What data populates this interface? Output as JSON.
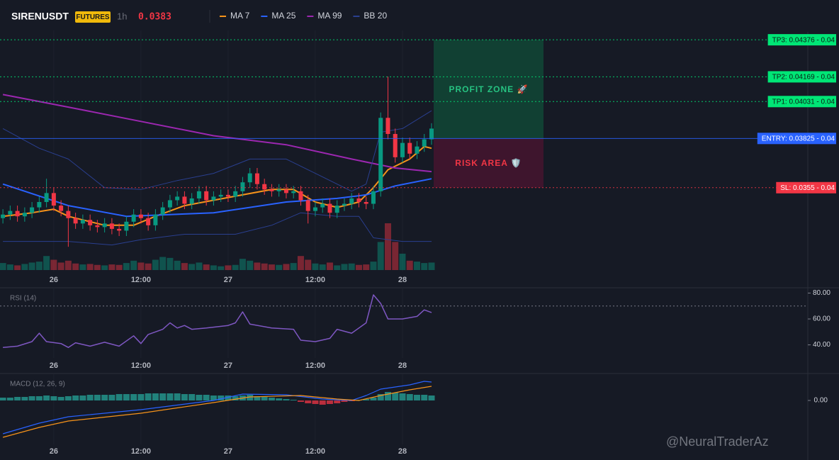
{
  "header": {
    "symbol": "SIRENUSDT",
    "badge": "FUTURES",
    "interval": "1h",
    "price": 0.0383,
    "watermark": "@NeuralTraderAz"
  },
  "chart_data": [
    {
      "type": "candlestick",
      "xlim": [
        16.6,
        127.6
      ],
      "xticks": [
        {
          "value": 24,
          "label": "26"
        },
        {
          "value": 36,
          "label": "12:00"
        },
        {
          "value": 48,
          "label": "27"
        },
        {
          "value": 60,
          "label": "12:00"
        },
        {
          "value": 72,
          "label": "28"
        }
      ],
      "ylim": [
        0.0309,
        0.0442
      ],
      "up_color": "#089981",
      "down_color": "#f23645",
      "x": [
        17,
        18,
        19,
        20,
        21,
        22,
        23,
        24,
        25,
        26,
        27,
        28,
        29,
        30,
        31,
        32,
        33,
        34,
        35,
        36,
        37,
        38,
        39,
        40,
        41,
        42,
        43,
        44,
        45,
        46,
        47,
        48,
        49,
        50,
        51,
        52,
        53,
        54,
        55,
        56,
        57,
        58,
        59,
        60,
        61,
        62,
        63,
        64,
        65,
        66,
        67,
        68,
        69,
        70,
        71,
        72,
        73,
        74,
        75,
        76
      ],
      "open": [
        0.0338,
        0.034,
        0.0342,
        0.0339,
        0.0341,
        0.0344,
        0.0347,
        0.0352,
        0.0345,
        0.0342,
        0.0338,
        0.0335,
        0.0337,
        0.0334,
        0.0333,
        0.0335,
        0.0332,
        0.0331,
        0.0336,
        0.034,
        0.0338,
        0.0334,
        0.034,
        0.0344,
        0.0348,
        0.035,
        0.0346,
        0.0349,
        0.0353,
        0.0348,
        0.035,
        0.0351,
        0.035,
        0.0353,
        0.0358,
        0.0363,
        0.0357,
        0.0354,
        0.0353,
        0.0354,
        0.0352,
        0.0353,
        0.0348,
        0.0342,
        0.0344,
        0.0346,
        0.0341,
        0.0345,
        0.0346,
        0.0349,
        0.0347,
        0.0346,
        0.0353,
        0.0394,
        0.0385,
        0.0372,
        0.038,
        0.0374,
        0.0378,
        0.0382
      ],
      "high": [
        0.0343,
        0.0345,
        0.0345,
        0.0344,
        0.0347,
        0.035,
        0.036,
        0.0355,
        0.0348,
        0.0345,
        0.0341,
        0.034,
        0.034,
        0.0337,
        0.0338,
        0.0338,
        0.0335,
        0.0339,
        0.0343,
        0.0343,
        0.0341,
        0.0343,
        0.0347,
        0.0351,
        0.0353,
        0.0353,
        0.0352,
        0.0356,
        0.0356,
        0.0353,
        0.0354,
        0.0354,
        0.0356,
        0.0361,
        0.0366,
        0.0366,
        0.036,
        0.0357,
        0.0357,
        0.0357,
        0.0356,
        0.0356,
        0.0351,
        0.0347,
        0.0349,
        0.0349,
        0.0348,
        0.0349,
        0.0352,
        0.0352,
        0.035,
        0.0356,
        0.0397,
        0.0417,
        0.0388,
        0.0383,
        0.0383,
        0.0381,
        0.0385,
        0.0391
      ],
      "low": [
        0.0335,
        0.0337,
        0.0336,
        0.0336,
        0.0338,
        0.0341,
        0.0344,
        0.0342,
        0.0339,
        0.0322,
        0.0332,
        0.0332,
        0.0331,
        0.033,
        0.033,
        0.0329,
        0.0328,
        0.0328,
        0.0333,
        0.0335,
        0.0331,
        0.0331,
        0.0337,
        0.0341,
        0.0345,
        0.0343,
        0.0343,
        0.0346,
        0.0345,
        0.0345,
        0.0347,
        0.0347,
        0.0347,
        0.035,
        0.0355,
        0.0354,
        0.0351,
        0.035,
        0.035,
        0.0349,
        0.0349,
        0.0345,
        0.0335,
        0.0339,
        0.0341,
        0.0338,
        0.0338,
        0.0342,
        0.0343,
        0.0344,
        0.0343,
        0.0343,
        0.035,
        0.0382,
        0.0369,
        0.0369,
        0.0371,
        0.0371,
        0.0375,
        0.0379
      ],
      "close": [
        0.034,
        0.0342,
        0.0339,
        0.0341,
        0.0344,
        0.0347,
        0.0352,
        0.0345,
        0.0342,
        0.0338,
        0.0335,
        0.0337,
        0.0334,
        0.0333,
        0.0335,
        0.0332,
        0.0331,
        0.0336,
        0.034,
        0.0338,
        0.0334,
        0.034,
        0.0344,
        0.0348,
        0.035,
        0.0346,
        0.0349,
        0.0353,
        0.0348,
        0.035,
        0.0351,
        0.035,
        0.0353,
        0.0358,
        0.0363,
        0.0357,
        0.0354,
        0.0353,
        0.0354,
        0.0352,
        0.0353,
        0.0348,
        0.0342,
        0.0344,
        0.0346,
        0.0341,
        0.0345,
        0.0346,
        0.0349,
        0.0347,
        0.0346,
        0.0353,
        0.0394,
        0.0385,
        0.0372,
        0.038,
        0.0374,
        0.0378,
        0.0382,
        0.0388
      ],
      "volume": [
        1.5,
        1.2,
        1.0,
        1.3,
        1.6,
        1.8,
        3.0,
        2.2,
        1.6,
        2.0,
        1.4,
        1.2,
        1.3,
        1.1,
        1.0,
        1.2,
        1.1,
        1.5,
        2.0,
        1.6,
        1.4,
        2.2,
        2.8,
        2.6,
        2.0,
        1.5,
        1.3,
        1.6,
        1.2,
        1.0,
        0.8,
        1.0,
        1.1,
        2.4,
        2.0,
        1.6,
        1.4,
        1.2,
        1.1,
        1.3,
        1.5,
        3.0,
        2.2,
        1.4,
        1.2,
        1.6,
        1.0,
        1.3,
        1.4,
        1.1,
        1.2,
        1.8,
        6.0,
        10.0,
        6.0,
        3.5,
        2.0,
        1.8,
        1.5,
        1.6
      ],
      "volume_lim": [
        0,
        10
      ],
      "overlays": [
        {
          "name": "MA 7",
          "color": "#f7931a",
          "x": [
            17,
            21,
            24,
            26,
            31,
            35,
            38,
            42,
            46,
            50,
            54,
            57,
            60,
            63,
            66,
            68,
            70,
            73,
            75,
            76
          ],
          "values": [
            0.0339,
            0.0341,
            0.0343,
            0.0339,
            0.0334,
            0.0334,
            0.0339,
            0.0345,
            0.0348,
            0.0351,
            0.0354,
            0.0354,
            0.0347,
            0.0344,
            0.0347,
            0.0355,
            0.0365,
            0.0371,
            0.0378,
            0.0377
          ]
        },
        {
          "name": "MA 25",
          "color": "#2962ff",
          "x": [
            17,
            26,
            34,
            46,
            56,
            63,
            67,
            71,
            76
          ],
          "values": [
            0.0357,
            0.0345,
            0.0339,
            0.0341,
            0.0347,
            0.0349,
            0.0351,
            0.0356,
            0.036
          ]
        },
        {
          "name": "MA 99",
          "color": "#9c27b0",
          "x": [
            17,
            26,
            36,
            46,
            56,
            65,
            71,
            76
          ],
          "values": [
            0.0407,
            0.04,
            0.0392,
            0.0384,
            0.0379,
            0.0371,
            0.0366,
            0.0364
          ]
        },
        {
          "name": "BB 20",
          "color": "#2a3f8f",
          "x": [
            17,
            22,
            26,
            31,
            36,
            41,
            46,
            51,
            56,
            61,
            65,
            67,
            69,
            72,
            76
          ],
          "values": [
            0.0388,
            0.0377,
            0.0371,
            0.0355,
            0.0354,
            0.0359,
            0.0363,
            0.0371,
            0.0371,
            0.0361,
            0.0353,
            0.0357,
            0.0386,
            0.0388,
            0.0398
          ],
          "lower": {
            "x": [
              17,
              26,
              32,
              36,
              42,
              49,
              54,
              58,
              63,
              66,
              68,
              72,
              76
            ],
            "values": [
              0.0325,
              0.0325,
              0.0323,
              0.0326,
              0.0329,
              0.0329,
              0.0334,
              0.0341,
              0.0339,
              0.0339,
              0.0327,
              0.0325,
              0.0325
            ]
          }
        }
      ],
      "levels": [
        {
          "label": "TP3: 0.04376 - 0.04",
          "value": 0.04376,
          "color": "#00e676",
          "text_color": "#0b1a12",
          "dash": true
        },
        {
          "label": "TP2: 0.04169 - 0.04",
          "value": 0.04169,
          "color": "#00e676",
          "text_color": "#0b1a12",
          "dash": true
        },
        {
          "label": "TP1: 0.04031 - 0.04",
          "value": 0.04031,
          "color": "#00e676",
          "text_color": "#0b1a12",
          "dash": true
        },
        {
          "label": "ENTRY: 0.03825 - 0.04",
          "value": 0.03825,
          "color": "#2962ff",
          "text_color": "#ffffff",
          "dash": false
        },
        {
          "label": "SL: 0.0355 - 0.04",
          "value": 0.0355,
          "color": "#f23645",
          "text_color": "#ffffff",
          "dash": true
        }
      ],
      "profit_zone_label": "PROFIT ZONE 🚀",
      "risk_zone_label": "RISK AREA 🛡️"
    },
    {
      "type": "line",
      "title": "RSI (14)",
      "color": "#7e57c2",
      "xlim": [
        16.6,
        127.6
      ],
      "xticks": [
        {
          "value": 24,
          "label": "26"
        },
        {
          "value": 36,
          "label": "12:00"
        },
        {
          "value": 48,
          "label": "27"
        },
        {
          "value": 60,
          "label": "12:00"
        },
        {
          "value": 72,
          "label": "28"
        }
      ],
      "ylim": [
        31,
        83
      ],
      "yticks": [
        {
          "value": 40,
          "label": "40.00"
        },
        {
          "value": 60,
          "label": "60.00"
        },
        {
          "value": 80,
          "label": "80.00"
        }
      ],
      "reference_line": 70,
      "x": [
        17,
        19,
        21,
        22,
        23,
        25,
        26,
        27,
        29,
        31,
        33,
        35,
        36,
        37,
        39,
        40,
        41,
        42,
        43,
        45,
        48,
        49,
        50,
        51,
        54,
        57,
        58,
        60,
        62,
        63,
        65,
        67,
        68,
        69,
        70,
        72,
        74,
        75,
        76
      ],
      "values": [
        38,
        39,
        42.5,
        49,
        42.5,
        41,
        38,
        41.6,
        39,
        42,
        39,
        47,
        41,
        48,
        52,
        57,
        53,
        55,
        52,
        53,
        55,
        57,
        65.5,
        56,
        53,
        52,
        43.6,
        42.5,
        45,
        52,
        49,
        57,
        78.6,
        72,
        60,
        60,
        62,
        67,
        65
      ]
    },
    {
      "type": "macd",
      "title": "MACD (12, 26, 9)",
      "xlim": [
        16.6,
        127.6
      ],
      "xticks": [
        {
          "value": 24,
          "label": "26"
        },
        {
          "value": 36,
          "label": "12:00"
        },
        {
          "value": 48,
          "label": "27"
        },
        {
          "value": 60,
          "label": "12:00"
        },
        {
          "value": 72,
          "label": "28"
        }
      ],
      "ylim": [
        -0.0012,
        0.0007
      ],
      "yticks": [
        {
          "value": 0,
          "label": "0.00"
        }
      ],
      "macd": {
        "color": "#2962ff",
        "x": [
          17,
          22,
          26,
          36,
          46,
          50,
          56,
          61,
          65,
          67,
          69,
          73,
          75,
          76
        ],
        "values": [
          -0.00094,
          -0.00064,
          -0.00046,
          -0.00026,
          0,
          0.00018,
          0.00016,
          4e-05,
          0,
          0.00014,
          0.00032,
          0.00044,
          0.00054,
          0.00052
        ]
      },
      "signal": {
        "color": "#f7931a",
        "x": [
          17,
          22,
          26,
          36,
          46,
          51,
          58,
          63,
          66,
          69,
          73,
          76
        ],
        "values": [
          -0.00104,
          -0.00076,
          -0.00058,
          -0.00036,
          -6e-05,
          0.0001,
          0.00014,
          4e-05,
          0,
          0.00014,
          0.0003,
          0.0004
        ]
      },
      "histogram": {
        "up_color": "#26a69a",
        "down_color": "#f23645",
        "x": [
          17,
          18,
          19,
          20,
          21,
          22,
          23,
          24,
          25,
          26,
          27,
          28,
          29,
          30,
          31,
          32,
          33,
          34,
          35,
          36,
          37,
          38,
          39,
          40,
          41,
          42,
          43,
          44,
          45,
          46,
          47,
          48,
          49,
          50,
          51,
          52,
          53,
          54,
          55,
          56,
          57,
          58,
          59,
          60,
          61,
          62,
          63,
          64,
          65,
          66,
          67,
          68,
          69,
          70,
          71,
          72,
          73,
          74,
          75,
          76
        ],
        "values": [
          8e-05,
          8e-05,
          0.0001,
          0.0001,
          0.00012,
          0.00012,
          0.00014,
          0.00012,
          0.0001,
          0.00012,
          0.00014,
          0.00014,
          0.00016,
          0.00016,
          0.00016,
          0.00016,
          0.00018,
          0.00018,
          0.00018,
          0.00018,
          0.0002,
          0.0002,
          0.0002,
          0.0002,
          0.0002,
          0.00018,
          0.00018,
          0.00016,
          0.00016,
          0.00014,
          0.00014,
          0.00014,
          0.00012,
          0.00014,
          0.00016,
          0.00012,
          0.0001,
          8e-05,
          6e-05,
          4e-05,
          2e-05,
          -4e-05,
          -8e-05,
          -0.0001,
          -0.00012,
          -0.0001,
          -8e-05,
          -4e-05,
          -2e-05,
          2e-05,
          4e-05,
          8e-05,
          0.00018,
          0.00024,
          0.00022,
          0.0002,
          0.00018,
          0.00016,
          0.00016,
          0.00014
        ]
      }
    }
  ]
}
